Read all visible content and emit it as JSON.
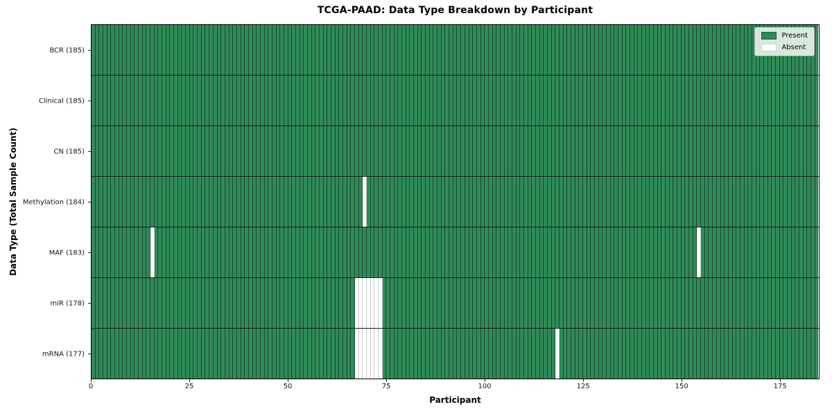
{
  "chart_data": {
    "type": "heatmap",
    "title": "TCGA-PAAD: Data Type Breakdown by Participant",
    "xlabel": "Participant",
    "ylabel": "Data Type (Total Sample Count)",
    "n_participants": 185,
    "x_axis_range": [
      0,
      185
    ],
    "x_ticks": [
      0,
      25,
      50,
      75,
      100,
      125,
      150,
      175
    ],
    "grid": "column-and-row-separators",
    "colors": {
      "present": "#2e8b57",
      "absent": "#ffffff",
      "present_separator": "#1c4731",
      "absent_separator": "#c9c9c9",
      "row_separator": "#1b1b1b",
      "plot_border": "#000000"
    },
    "legend": {
      "position": "upper-right",
      "entries": [
        {
          "label": "Present",
          "color": "#2e8b57"
        },
        {
          "label": "Absent",
          "color": "#ffffff"
        }
      ]
    },
    "rows": [
      {
        "label": "BCR (185)",
        "data_type": "BCR",
        "total_samples": 185,
        "absent_participants": []
      },
      {
        "label": "Clinical (185)",
        "data_type": "Clinical",
        "total_samples": 185,
        "absent_participants": []
      },
      {
        "label": "CN (185)",
        "data_type": "CN",
        "total_samples": 185,
        "absent_participants": []
      },
      {
        "label": "Methylation (184)",
        "data_type": "Methylation",
        "total_samples": 184,
        "absent_participants": [
          69
        ]
      },
      {
        "label": "MAF (183)",
        "data_type": "MAF",
        "total_samples": 183,
        "absent_participants": [
          15,
          154
        ]
      },
      {
        "label": "miR (178)",
        "data_type": "miR",
        "total_samples": 178,
        "absent_participants": [
          67,
          68,
          69,
          70,
          71,
          72,
          73
        ]
      },
      {
        "label": "mRNA (177)",
        "data_type": "mRNA",
        "total_samples": 177,
        "absent_participants": [
          67,
          68,
          69,
          70,
          71,
          72,
          73,
          118
        ]
      }
    ]
  }
}
